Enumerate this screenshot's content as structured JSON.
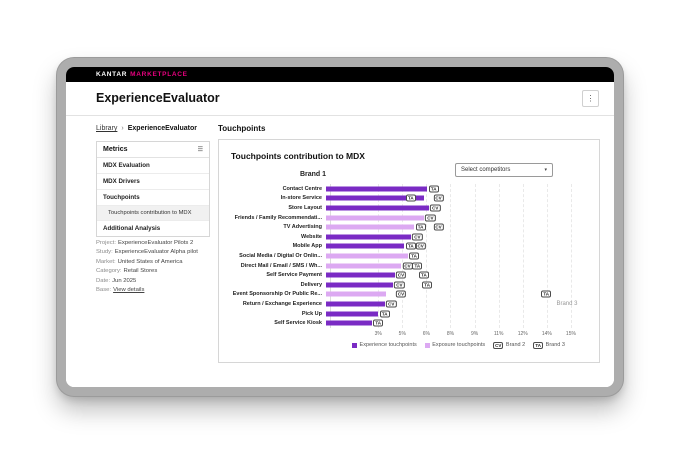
{
  "topbar": {
    "brand_primary": "KANTAR",
    "brand_secondary": "MARKETPLACE",
    "brand_secondary_color": "#E6007E"
  },
  "header": {
    "title": "ExperienceEvaluator",
    "kebab_icon": "⋮"
  },
  "breadcrumb": {
    "library": "Library",
    "separator": "›",
    "current": "ExperienceEvaluator"
  },
  "sidebar": {
    "title": "Metrics",
    "menu_icon": "☰",
    "items": [
      {
        "label": "MDX Evaluation",
        "type": "item"
      },
      {
        "label": "MDX Drivers",
        "type": "item"
      },
      {
        "label": "Touchpoints",
        "type": "item"
      },
      {
        "label": "Touchpoints contribution to MDX",
        "type": "subitem",
        "selected": true
      },
      {
        "label": "Additional Analysis",
        "type": "item"
      }
    ]
  },
  "project_info": {
    "rows": [
      {
        "label": "Project:",
        "value": "ExperienceEvaluator Pilots 2"
      },
      {
        "label": "Study:",
        "value": "ExperienceEvaluator Alpha pilot"
      },
      {
        "label": "Market:",
        "value": "United States of America"
      },
      {
        "label": "Category:",
        "value": "Retail Stores"
      },
      {
        "label": "Date:",
        "value": "Jun 2025"
      },
      {
        "label": "Base:",
        "value": "View details",
        "link": true
      }
    ]
  },
  "main": {
    "section_title": "Touchpoints",
    "card_title": "Touchpoints contribution to MDX",
    "dropdown_label": "Select competitors",
    "dropdown_caret": "▾"
  },
  "chart_data": {
    "type": "bar",
    "orientation": "horizontal",
    "title": "Touchpoints contribution to MDX",
    "brand_label": "Brand 1",
    "xlim": [
      0,
      16
    ],
    "x_ticks": [
      {
        "value": 3,
        "label": "3%"
      },
      {
        "value": 4.5,
        "label": "5%"
      },
      {
        "value": 6,
        "label": "6%"
      },
      {
        "value": 7.5,
        "label": "8%"
      },
      {
        "value": 9,
        "label": "9%"
      },
      {
        "value": 10.5,
        "label": "11%"
      },
      {
        "value": 12,
        "label": "12%"
      },
      {
        "value": 13.5,
        "label": "14%"
      },
      {
        "value": 15,
        "label": "15%"
      }
    ],
    "series_colors": {
      "experience": "#7A2BC4",
      "exposure": "#DCA9F2"
    },
    "rows": [
      {
        "category": "Contact Centre",
        "series": "experience",
        "value": 6.2,
        "markers": [
          {
            "label": "TA",
            "value": 6.6
          }
        ]
      },
      {
        "category": "In-store Service",
        "series": "experience",
        "value": 6.0,
        "markers": [
          {
            "label": "TA",
            "value": 5.2
          },
          {
            "label": "CV",
            "value": 6.9
          }
        ]
      },
      {
        "category": "Store Layout",
        "series": "experience",
        "value": 6.3,
        "markers": [
          {
            "label": "CV",
            "value": 6.7
          }
        ]
      },
      {
        "category": "Friends / Family Recommendati...",
        "series": "exposure",
        "value": 6.0,
        "markers": [
          {
            "label": "CV",
            "value": 6.4
          }
        ]
      },
      {
        "category": "TV Advertising",
        "series": "exposure",
        "value": 5.4,
        "markers": [
          {
            "label": "TA",
            "value": 5.8
          },
          {
            "label": "CV",
            "value": 6.9
          }
        ]
      },
      {
        "category": "Website",
        "series": "experience",
        "value": 5.2,
        "markers": [
          {
            "label": "CV",
            "value": 5.6
          }
        ]
      },
      {
        "category": "Mobile App",
        "series": "experience",
        "value": 4.8,
        "markers": [
          {
            "label": "TA",
            "value": 5.2
          },
          {
            "label": "CV",
            "value": 5.8
          }
        ]
      },
      {
        "category": "Social Media / Digital Or Onlin...",
        "series": "exposure",
        "value": 5.0,
        "markers": [
          {
            "label": "TA",
            "value": 5.4
          }
        ]
      },
      {
        "category": "Direct Mail / Email / SMS / Wh...",
        "series": "exposure",
        "value": 4.6,
        "markers": [
          {
            "label": "CV",
            "value": 5.0
          },
          {
            "label": "TA",
            "value": 5.6
          }
        ]
      },
      {
        "category": "Self Service Payment",
        "series": "experience",
        "value": 4.2,
        "markers": [
          {
            "label": "CV",
            "value": 4.6
          },
          {
            "label": "TA",
            "value": 6.0
          }
        ]
      },
      {
        "category": "Delivery",
        "series": "experience",
        "value": 4.1,
        "markers": [
          {
            "label": "CV",
            "value": 4.5
          },
          {
            "label": "TA",
            "value": 6.2
          }
        ]
      },
      {
        "category": "Event Sponsorship Or Public Re...",
        "series": "exposure",
        "value": 3.7,
        "markers": [
          {
            "label": "CV",
            "value": 4.6
          },
          {
            "label": "TA",
            "value": 13.5
          }
        ]
      },
      {
        "category": "Return / Exchange Experience",
        "series": "experience",
        "value": 3.6,
        "markers": [
          {
            "label": "CV",
            "value": 4.0
          }
        ]
      },
      {
        "category": "Pick Up",
        "series": "experience",
        "value": 3.2,
        "markers": [
          {
            "label": "TA",
            "value": 3.6
          }
        ]
      },
      {
        "category": "Self Service Kiosk",
        "series": "experience",
        "value": 2.8,
        "markers": [
          {
            "label": "TA",
            "value": 3.2
          }
        ]
      }
    ],
    "annotation": {
      "label": "Brand 3",
      "x": 14.1,
      "row": 12.2
    },
    "legend": [
      {
        "swatch": "experience",
        "label": "Experience touchpoints"
      },
      {
        "swatch": "exposure",
        "label": "Exposure touchpoints"
      },
      {
        "badge": "CV",
        "label": "Brand 2"
      },
      {
        "badge": "TA",
        "label": "Brand 3"
      }
    ]
  }
}
